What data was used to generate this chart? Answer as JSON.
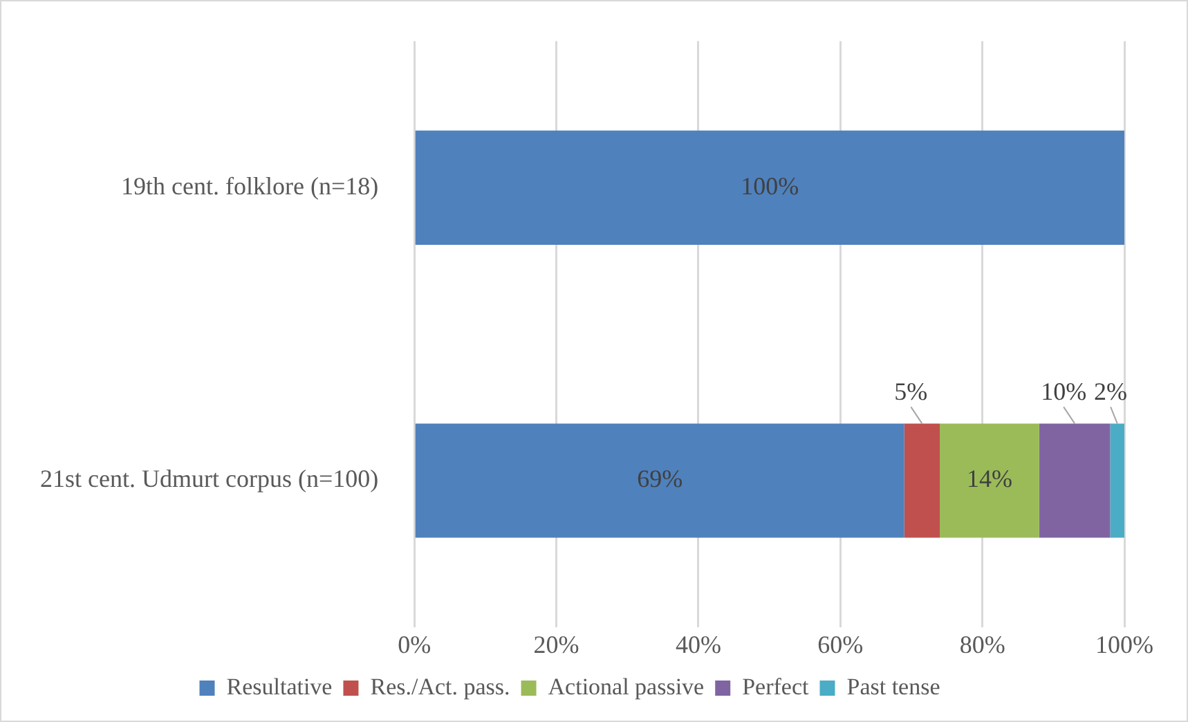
{
  "chart_data": {
    "type": "bar",
    "orientation": "horizontal",
    "stacked": true,
    "categories": [
      "19th cent. folklore (n=18)",
      "21st cent. Udmurt corpus (n=100)"
    ],
    "series": [
      {
        "name": "Resultative",
        "color": "#4f81bd",
        "values": [
          100,
          69
        ],
        "value_labels": [
          "100%",
          "69%"
        ]
      },
      {
        "name": "Res./Act. pass.",
        "color": "#c0504d",
        "values": [
          0,
          5
        ],
        "value_labels": [
          null,
          "5%"
        ]
      },
      {
        "name": "Actional passive",
        "color": "#9bbb59",
        "values": [
          0,
          14
        ],
        "value_labels": [
          null,
          "14%"
        ]
      },
      {
        "name": "Perfect",
        "color": "#8064a2",
        "values": [
          0,
          10
        ],
        "value_labels": [
          null,
          "10%"
        ]
      },
      {
        "name": "Past tense",
        "color": "#4bacc6",
        "values": [
          0,
          2
        ],
        "value_labels": [
          null,
          "2%"
        ]
      }
    ],
    "xlim": [
      0,
      100
    ],
    "xticks": [
      {
        "value": 0,
        "label": "0%"
      },
      {
        "value": 20,
        "label": "20%"
      },
      {
        "value": 40,
        "label": "40%"
      },
      {
        "value": 60,
        "label": "60%"
      },
      {
        "value": 80,
        "label": "80%"
      },
      {
        "value": 100,
        "label": "100%"
      }
    ],
    "grid": "x",
    "legend": "bottom"
  }
}
